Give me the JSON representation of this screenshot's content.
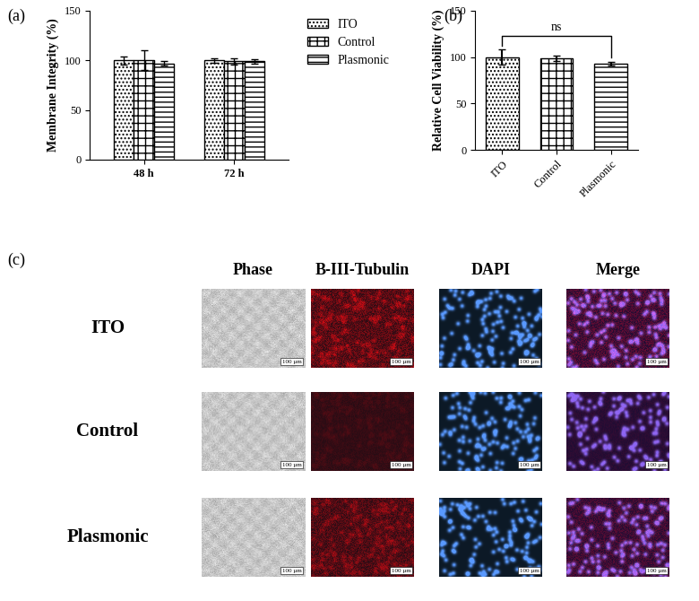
{
  "chart_data": [
    {
      "type": "bar",
      "panel_label": "(a)",
      "y_label": "Membrane Integrity (%)",
      "categories": [
        "48 h",
        "72 h"
      ],
      "series": [
        {
          "name": "ITO",
          "color": "#ffffff",
          "values": [
            100,
            100
          ],
          "errors": [
            4,
            2
          ]
        },
        {
          "name": "Control",
          "color": "#ffffff",
          "values": [
            100,
            99
          ],
          "errors": [
            10,
            3
          ]
        },
        {
          "name": "Plasmonic",
          "color": "#ffffff",
          "values": [
            97,
            99
          ],
          "errors": [
            2,
            2
          ]
        }
      ],
      "ylim": [
        0,
        150
      ],
      "yticks": [
        0,
        50,
        100,
        150
      ],
      "legend": "upper left"
    },
    {
      "type": "bar",
      "panel_label": "(b)",
      "y_label": "Relative Cell Viability (%)",
      "categories": [
        "ITO",
        "Control",
        "Plasmonic"
      ],
      "values": [
        100,
        99,
        93
      ],
      "errors": [
        8,
        3,
        2
      ],
      "colors": [
        "#ffffff",
        "#ffffff",
        "#ffffff"
      ],
      "ylim": [
        0,
        150
      ],
      "yticks": [
        0,
        50,
        100,
        150
      ],
      "significance": {
        "between": [
          "ITO",
          "Plasmonic"
        ],
        "label": "ns"
      }
    }
  ],
  "image_grid": {
    "panel_label": "(c)",
    "columns": [
      "Phase",
      "B-III-Tubulin",
      "DAPI",
      "Merge"
    ],
    "rows": [
      "ITO",
      "Control",
      "Plasmonic"
    ],
    "scale_bar": "100 µm"
  }
}
